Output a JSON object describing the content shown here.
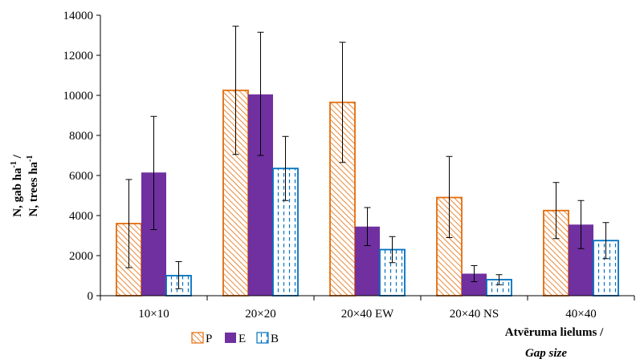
{
  "chart_data": {
    "type": "bar",
    "categories": [
      "10×10",
      "20×20",
      "20×40 EW",
      "20×40 NS",
      "40×40"
    ],
    "series": [
      {
        "name": "P",
        "values": [
          3600,
          10250,
          9650,
          4900,
          4250
        ],
        "err_low": [
          1400,
          7050,
          6650,
          2900,
          2850
        ],
        "err_high": [
          5800,
          13450,
          12650,
          6950,
          5650
        ],
        "color": "#e36c09",
        "pattern": "diagonal-hatch"
      },
      {
        "name": "E",
        "values": [
          6150,
          10050,
          3450,
          1100,
          3550
        ],
        "err_low": [
          3300,
          7000,
          2500,
          700,
          2350
        ],
        "err_high": [
          8950,
          13150,
          4400,
          1500,
          4750
        ],
        "color": "#7030a0",
        "pattern": "solid"
      },
      {
        "name": "B",
        "values": [
          1000,
          6350,
          2300,
          800,
          2750
        ],
        "err_low": [
          350,
          4750,
          1650,
          550,
          1850
        ],
        "err_high": [
          1700,
          7950,
          2950,
          1050,
          3650
        ],
        "color": "#0070c0",
        "pattern": "vertical-dash"
      }
    ],
    "ylim": [
      0,
      14000
    ],
    "yticks": [
      "0",
      "2000",
      "4000",
      "6000",
      "8000",
      "10000",
      "12000",
      "14000"
    ],
    "ylabel": {
      "line1": {
        "text": "N, gab ha",
        "sup": "-1",
        "tail": " /"
      },
      "line2": {
        "text": "N, trees ha",
        "sup": "-1"
      }
    },
    "xlabel": {
      "line1": "Atvēruma lielums  /",
      "line2": "Gap size"
    },
    "legend_placement": "bottom-left",
    "grid": false
  }
}
